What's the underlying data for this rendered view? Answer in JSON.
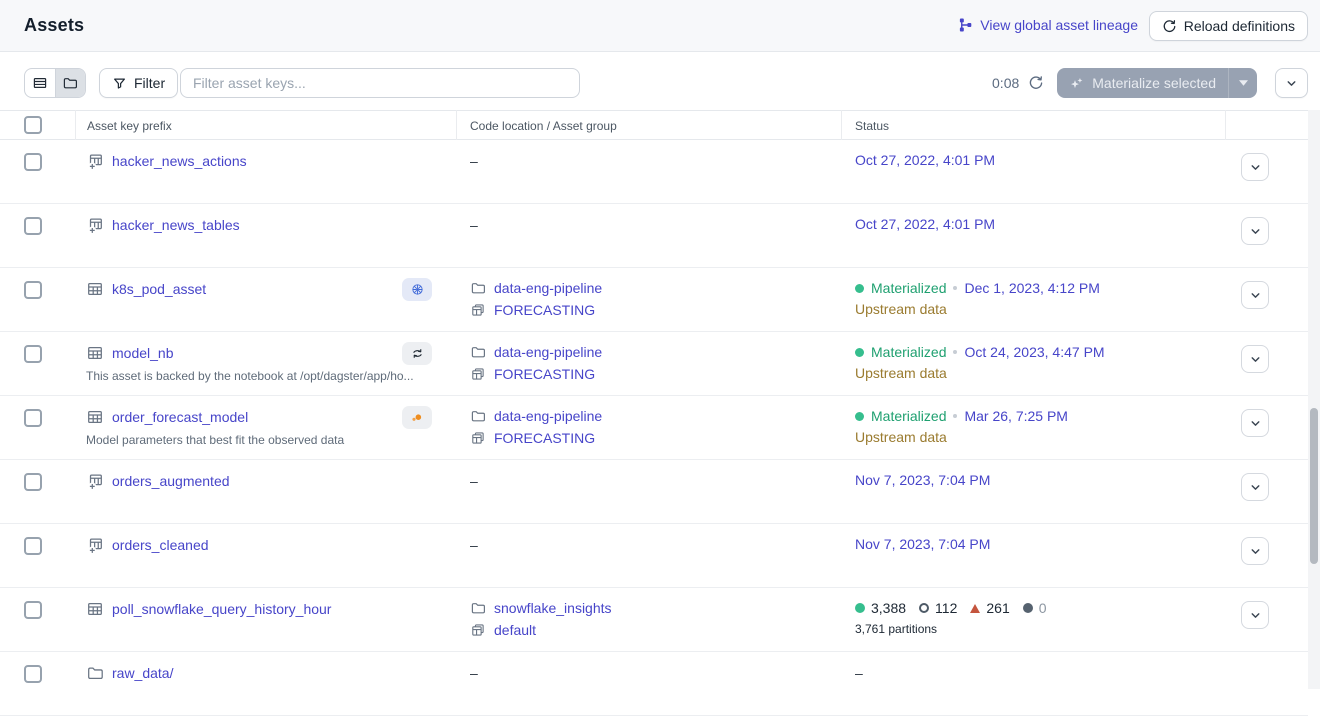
{
  "page": {
    "title": "Assets"
  },
  "header": {
    "lineage_link": "View global asset lineage",
    "reload_button": "Reload definitions"
  },
  "toolbar": {
    "filter_button": "Filter",
    "search_placeholder": "Filter asset keys...",
    "timer": "0:08",
    "materialize_button": "Materialize selected"
  },
  "table": {
    "columns": [
      "Asset key prefix",
      "Code location / Asset group",
      "Status"
    ],
    "empty_placeholder": "–",
    "rows": [
      {
        "name": "hacker_news_actions",
        "icon": "table-plus",
        "badge": null,
        "description": null,
        "location": null,
        "status": {
          "type": "date",
          "date": "Oct 27, 2022, 4:01 PM"
        },
        "has_menu": true
      },
      {
        "name": "hacker_news_tables",
        "icon": "table-plus",
        "badge": null,
        "description": null,
        "location": null,
        "status": {
          "type": "date",
          "date": "Oct 27, 2022, 4:01 PM"
        },
        "has_menu": true
      },
      {
        "name": "k8s_pod_asset",
        "icon": "table",
        "badge": "kubernetes",
        "description": null,
        "location": {
          "code_location": "data-eng-pipeline",
          "asset_group": "FORECASTING"
        },
        "status": {
          "type": "materialized",
          "label": "Materialized",
          "date": "Dec 1, 2023, 4:12 PM",
          "note": "Upstream data"
        },
        "has_menu": true
      },
      {
        "name": "model_nb",
        "icon": "table",
        "badge": "noteable",
        "description": "This asset is backed by the notebook at /opt/dagster/app/ho...",
        "location": {
          "code_location": "data-eng-pipeline",
          "asset_group": "FORECASTING"
        },
        "status": {
          "type": "materialized",
          "label": "Materialized",
          "date": "Oct 24, 2023, 4:47 PM",
          "note": "Upstream data"
        },
        "has_menu": true
      },
      {
        "name": "order_forecast_model",
        "icon": "table",
        "badge": "orange-dots",
        "description": "Model parameters that best fit the observed data",
        "location": {
          "code_location": "data-eng-pipeline",
          "asset_group": "FORECASTING"
        },
        "status": {
          "type": "materialized",
          "label": "Materialized",
          "date": "Mar 26, 7:25 PM",
          "note": "Upstream data"
        },
        "has_menu": true
      },
      {
        "name": "orders_augmented",
        "icon": "table-plus",
        "badge": null,
        "description": null,
        "location": null,
        "status": {
          "type": "date",
          "date": "Nov 7, 2023, 7:04 PM"
        },
        "has_menu": true
      },
      {
        "name": "orders_cleaned",
        "icon": "table-plus",
        "badge": null,
        "description": null,
        "location": null,
        "status": {
          "type": "date",
          "date": "Nov 7, 2023, 7:04 PM"
        },
        "has_menu": true
      },
      {
        "name": "poll_snowflake_query_history_hour",
        "icon": "table",
        "badge": null,
        "description": null,
        "location": {
          "code_location": "snowflake_insights",
          "asset_group": "default"
        },
        "status": {
          "type": "counts",
          "materialized": "3,388",
          "observed": "112",
          "failed": "261",
          "missing": "0",
          "partitions": "3,761 partitions"
        },
        "has_menu": true
      },
      {
        "name": "raw_data/",
        "icon": "folder",
        "badge": null,
        "description": null,
        "location": null,
        "status": {
          "type": "empty"
        },
        "has_menu": false
      }
    ]
  },
  "colors": {
    "accent": "#4745C9",
    "materialized_green": "#1FA070",
    "upstream_warning": "#9A7B2F",
    "failed_red": "#C4553E"
  }
}
